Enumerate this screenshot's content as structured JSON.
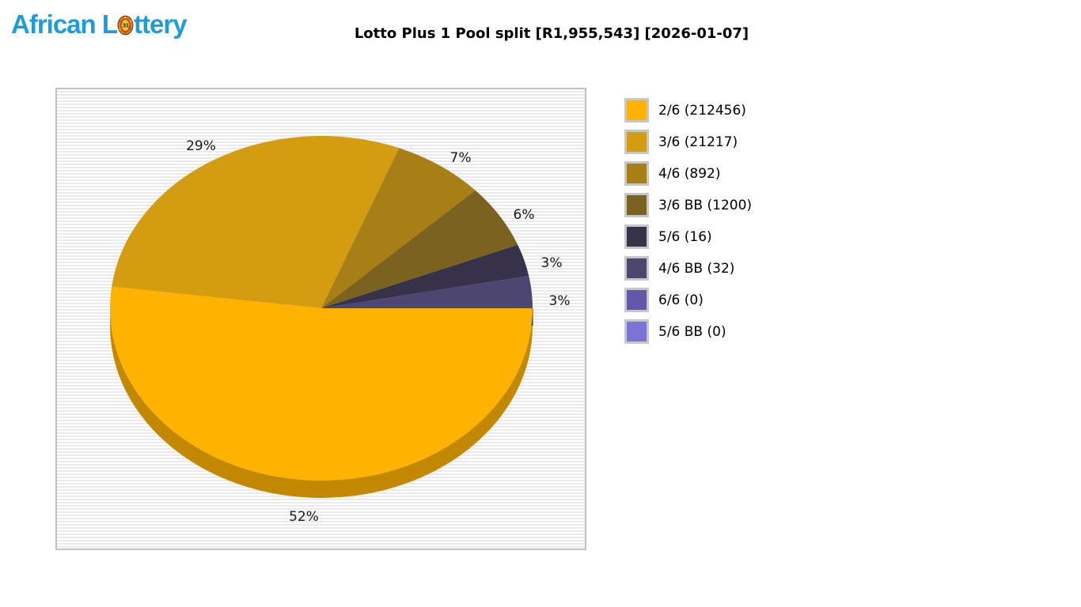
{
  "logo": {
    "prefix": "African L",
    "suffix": "ttery",
    "color": "#1E9CD8"
  },
  "header": {
    "title": "Lotto Plus 1 Pool split [R1,955,543] [2026-01-07]"
  },
  "chart_data": {
    "type": "pie",
    "title": "Lotto Plus 1 Pool split [R1,955,543] [2026-01-07]",
    "pool_total": "R1,955,543",
    "draw_date": "2026-01-07",
    "start_angle_deg": 0,
    "direction": "clockwise",
    "style": "3d",
    "legend_position": "right",
    "slices": [
      {
        "label": "2/6",
        "count": 212456,
        "percent": 52,
        "color": "#FFB300"
      },
      {
        "label": "3/6",
        "count": 21217,
        "percent": 29,
        "color": "#D49C10"
      },
      {
        "label": "4/6",
        "count": 892,
        "percent": 7,
        "color": "#A87F17"
      },
      {
        "label": "3/6 BB",
        "count": 1200,
        "percent": 6,
        "color": "#7A621F"
      },
      {
        "label": "5/6",
        "count": 16,
        "percent": 3,
        "color": "#373149"
      },
      {
        "label": "4/6 BB",
        "count": 32,
        "percent": 3,
        "color": "#4C4670"
      },
      {
        "label": "6/6",
        "count": 0,
        "percent": 0,
        "color": "#6058A8"
      },
      {
        "label": "5/6 BB",
        "count": 0,
        "percent": 0,
        "color": "#7B74D4"
      }
    ],
    "percent_labels_shown": [
      "52%",
      "29%",
      "7%",
      "6%",
      "3%",
      "3%"
    ]
  },
  "legend": {
    "items": [
      {
        "text": "2/6 (212456)",
        "color": "#FFB300"
      },
      {
        "text": "3/6 (21217)",
        "color": "#D49C10"
      },
      {
        "text": "4/6 (892)",
        "color": "#A87F17"
      },
      {
        "text": "3/6 BB (1200)",
        "color": "#7A621F"
      },
      {
        "text": "5/6 (16)",
        "color": "#373149"
      },
      {
        "text": "4/6 BB (32)",
        "color": "#4C4670"
      },
      {
        "text": "6/6 (0)",
        "color": "#6058A8"
      },
      {
        "text": "5/6 BB (0)",
        "color": "#7B74D4"
      }
    ]
  }
}
